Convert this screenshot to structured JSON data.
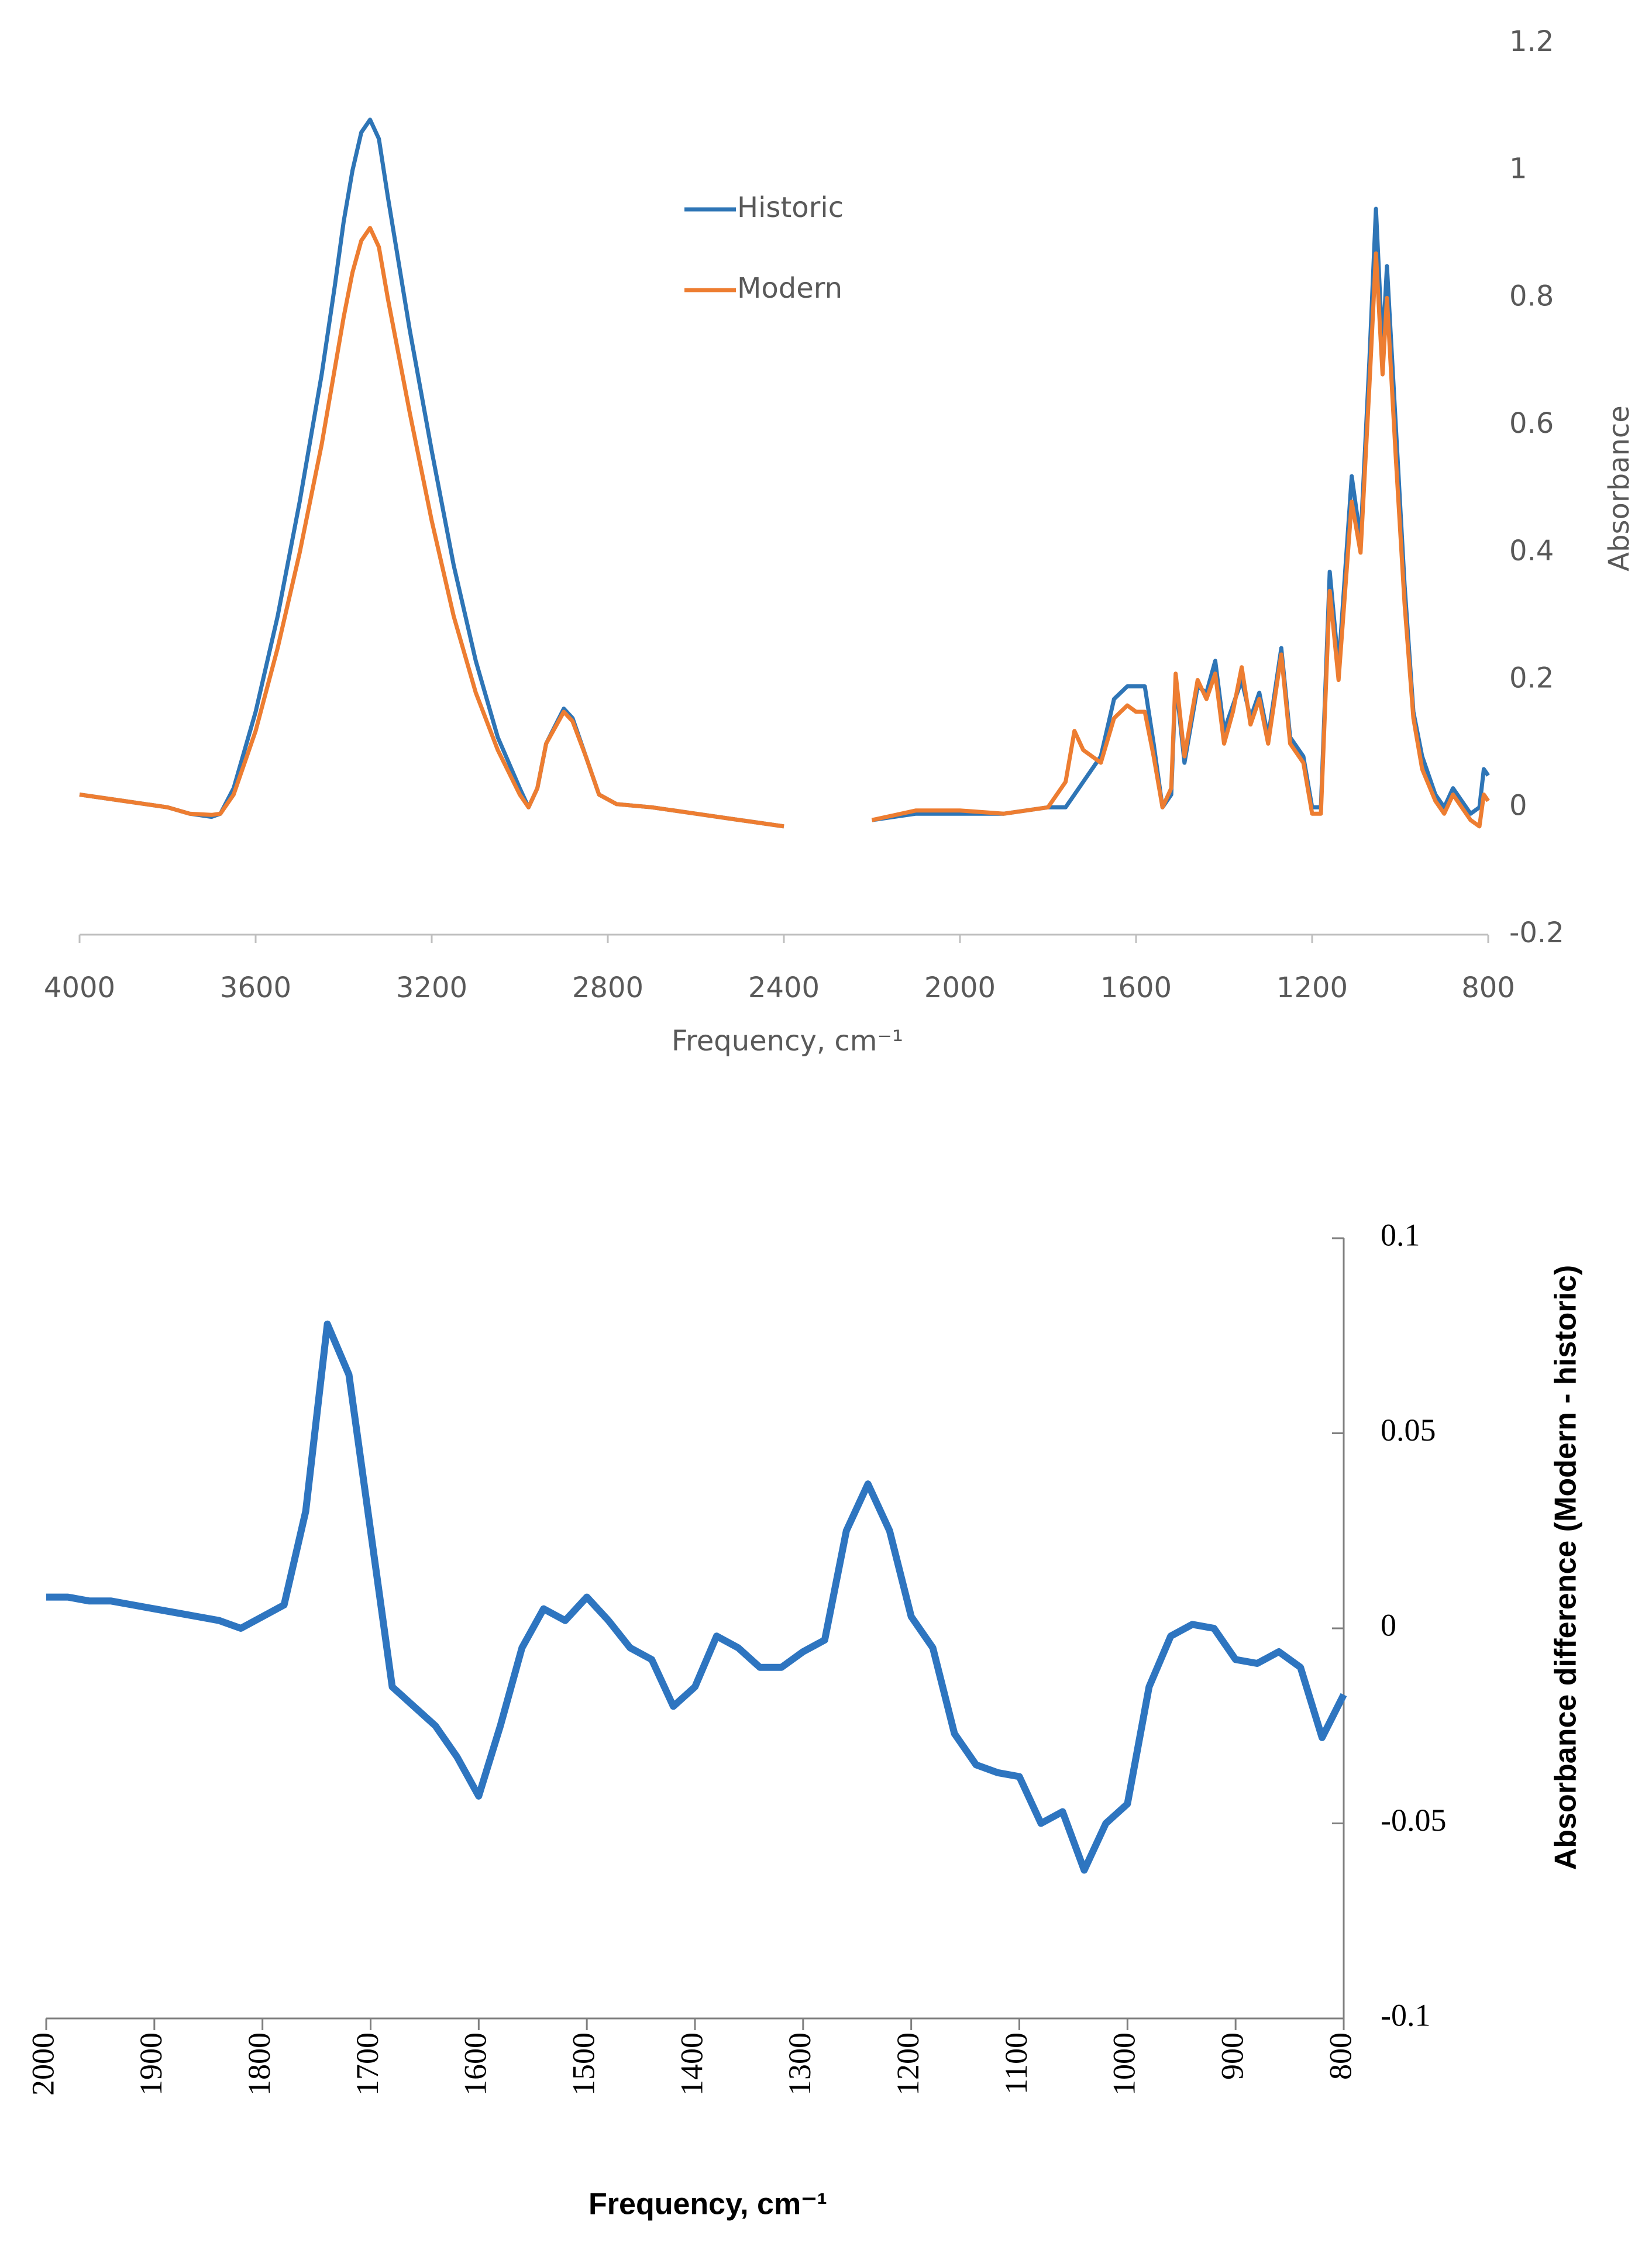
{
  "chart_data": [
    {
      "type": "line",
      "x_label": "Frequency, cm⁻¹",
      "y_label": "Absorbance",
      "x": [
        4000,
        3900,
        3800,
        3750,
        3700,
        3680,
        3650,
        3600,
        3550,
        3500,
        3450,
        3420,
        3400,
        3380,
        3360,
        3340,
        3320,
        3300,
        3250,
        3200,
        3150,
        3100,
        3050,
        3000,
        2980,
        2960,
        2940,
        2900,
        2880,
        2850,
        2820,
        2780,
        2700,
        2600,
        2500,
        2400,
        2300,
        2200,
        2100,
        2000,
        1900,
        1800,
        1760,
        1740,
        1720,
        1680,
        1650,
        1620,
        1600,
        1580,
        1560,
        1540,
        1520,
        1510,
        1490,
        1460,
        1440,
        1420,
        1400,
        1380,
        1360,
        1340,
        1320,
        1300,
        1270,
        1250,
        1220,
        1200,
        1180,
        1160,
        1140,
        1110,
        1090,
        1070,
        1055,
        1040,
        1030,
        1010,
        990,
        970,
        950,
        920,
        900,
        880,
        860,
        840,
        820,
        810,
        800
      ],
      "series": [
        {
          "name": "Historic",
          "color": "#2e75b6",
          "values": [
            0.02,
            0.01,
            0.0,
            -0.01,
            -0.015,
            -0.01,
            0.03,
            0.15,
            0.3,
            0.48,
            0.68,
            0.82,
            0.92,
            1.0,
            1.06,
            1.08,
            1.05,
            0.96,
            0.75,
            0.56,
            0.38,
            0.23,
            0.11,
            0.03,
            0.0,
            0.03,
            0.1,
            0.155,
            0.14,
            0.08,
            0.02,
            0.005,
            0.0,
            -0.01,
            -0.02,
            -0.03,
            null,
            -0.02,
            -0.01,
            -0.01,
            -0.01,
            0.0,
            0.0,
            0.02,
            0.04,
            0.08,
            0.17,
            0.19,
            0.19,
            0.19,
            0.1,
            0.0,
            0.02,
            0.2,
            0.07,
            0.19,
            0.18,
            0.23,
            0.12,
            0.16,
            0.2,
            0.14,
            0.18,
            0.11,
            0.25,
            0.11,
            0.08,
            0.0,
            0.0,
            0.37,
            0.22,
            0.52,
            0.42,
            0.7,
            0.94,
            0.72,
            0.85,
            0.6,
            0.35,
            0.15,
            0.08,
            0.02,
            0.0,
            0.03,
            0.01,
            -0.01,
            0.0,
            0.06,
            0.05
          ]
        },
        {
          "name": "Modern",
          "color": "#ed7d31",
          "values": [
            0.02,
            0.01,
            0.0,
            -0.01,
            -0.012,
            -0.01,
            0.02,
            0.12,
            0.25,
            0.4,
            0.57,
            0.69,
            0.77,
            0.84,
            0.89,
            0.91,
            0.88,
            0.8,
            0.62,
            0.45,
            0.3,
            0.18,
            0.09,
            0.02,
            0.0,
            0.03,
            0.1,
            0.15,
            0.135,
            0.08,
            0.02,
            0.005,
            0.0,
            -0.01,
            -0.02,
            -0.03,
            null,
            -0.02,
            -0.005,
            -0.005,
            -0.01,
            0.0,
            0.04,
            0.12,
            0.09,
            0.07,
            0.14,
            0.16,
            0.15,
            0.15,
            0.08,
            0.0,
            0.03,
            0.21,
            0.08,
            0.2,
            0.17,
            0.21,
            0.1,
            0.15,
            0.22,
            0.13,
            0.17,
            0.1,
            0.24,
            0.1,
            0.07,
            -0.01,
            -0.01,
            0.34,
            0.2,
            0.48,
            0.4,
            0.66,
            0.87,
            0.68,
            0.8,
            0.55,
            0.32,
            0.14,
            0.06,
            0.01,
            -0.01,
            0.02,
            0.0,
            -0.02,
            -0.03,
            0.02,
            0.01
          ]
        }
      ],
      "xlim": [
        4000,
        800
      ],
      "xticks": [
        4000,
        3600,
        3200,
        2800,
        2400,
        2000,
        1600,
        1200,
        800
      ],
      "ylim": [
        -0.2,
        1.2
      ],
      "yticks": [
        -0.2,
        0,
        0.2,
        0.4,
        0.6,
        0.8,
        1,
        1.2
      ],
      "y_axis_side": "right",
      "legend": "top",
      "grid": false
    },
    {
      "type": "line",
      "x_label": "Frequency, cm⁻¹",
      "y_label": "Absorbance  difference (Modern - historic)",
      "x": [
        2000,
        1980,
        1960,
        1940,
        1920,
        1900,
        1880,
        1860,
        1840,
        1820,
        1800,
        1780,
        1760,
        1740,
        1720,
        1700,
        1680,
        1660,
        1640,
        1620,
        1600,
        1580,
        1560,
        1540,
        1520,
        1500,
        1480,
        1460,
        1440,
        1420,
        1400,
        1380,
        1360,
        1340,
        1320,
        1300,
        1280,
        1260,
        1240,
        1220,
        1200,
        1180,
        1160,
        1140,
        1120,
        1100,
        1080,
        1060,
        1040,
        1020,
        1000,
        980,
        960,
        940,
        920,
        900,
        880,
        860,
        840,
        820,
        800
      ],
      "series": [
        {
          "color": "#2e75c0",
          "values": [
            0.008,
            0.008,
            0.007,
            0.007,
            0.006,
            0.005,
            0.004,
            0.003,
            0.002,
            0.0,
            0.003,
            0.006,
            0.03,
            0.078,
            0.065,
            0.025,
            -0.015,
            -0.02,
            -0.025,
            -0.033,
            -0.043,
            -0.025,
            -0.005,
            0.005,
            0.002,
            0.008,
            0.002,
            -0.005,
            -0.008,
            -0.02,
            -0.015,
            -0.002,
            -0.005,
            -0.01,
            -0.01,
            -0.006,
            -0.003,
            0.025,
            0.037,
            0.025,
            0.003,
            -0.005,
            -0.027,
            -0.035,
            -0.037,
            -0.038,
            -0.05,
            -0.047,
            -0.062,
            -0.05,
            -0.045,
            -0.015,
            -0.002,
            0.001,
            0.0,
            -0.008,
            -0.009,
            -0.006,
            -0.01,
            -0.028,
            -0.017
          ]
        }
      ],
      "xlim": [
        2000,
        800
      ],
      "xticks": [
        2000,
        1900,
        1800,
        1700,
        1600,
        1500,
        1400,
        1300,
        1200,
        1100,
        1000,
        900,
        800
      ],
      "ylim": [
        -0.1,
        0.1
      ],
      "yticks": [
        -0.1,
        -0.05,
        0,
        0.05,
        0.1
      ],
      "y_axis_side": "right",
      "grid": false
    }
  ]
}
